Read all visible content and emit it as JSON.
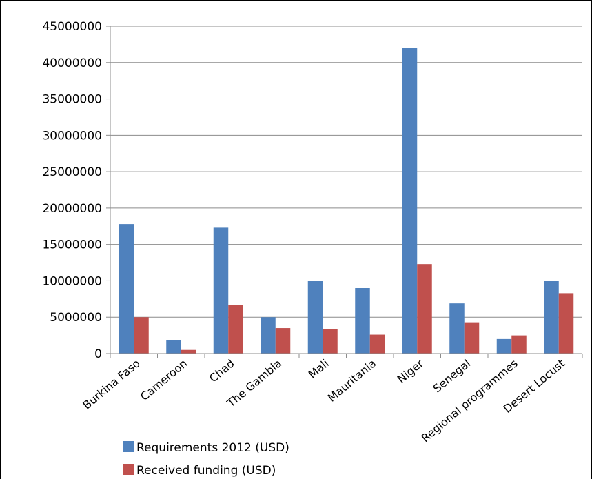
{
  "chart_data": {
    "type": "bar",
    "categories": [
      "Burkina Faso",
      "Cameroon",
      "Chad",
      "The Gambia",
      "Mali",
      "Mauritania",
      "Niger",
      "Senegal",
      "Regional programmes",
      "Desert Locust"
    ],
    "series": [
      {
        "name": "Requirements 2012 (USD)",
        "color": "#4F81BD",
        "values": [
          17800000,
          1800000,
          17300000,
          5000000,
          10000000,
          9000000,
          42000000,
          6900000,
          2000000,
          10000000
        ]
      },
      {
        "name": "Received funding (USD)",
        "color": "#C0504D",
        "values": [
          5000000,
          500000,
          6700000,
          3500000,
          3400000,
          2600000,
          12300000,
          4300000,
          2500000,
          8300000
        ]
      }
    ],
    "ylim": [
      0,
      45000000
    ],
    "yticks": [
      "0",
      "5000000",
      "10000000",
      "15000000",
      "20000000",
      "25000000",
      "30000000",
      "35000000",
      "40000000",
      "45000000"
    ],
    "grid": true,
    "legend": "bottom"
  }
}
